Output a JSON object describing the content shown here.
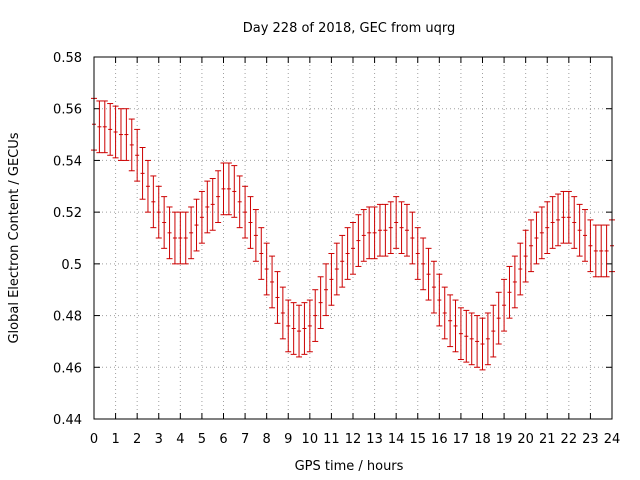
{
  "chart_data": {
    "type": "line",
    "title": "Day 228 of 2018, GEC from uqrg",
    "xlabel": "GPS time / hours",
    "ylabel": "Global Electron Content / GECUs",
    "xlim": [
      0,
      24
    ],
    "ylim": [
      0.44,
      0.58
    ],
    "xticks": [
      "0",
      "1",
      "2",
      "3",
      "4",
      "5",
      "6",
      "7",
      "8",
      "9",
      "10",
      "11",
      "12",
      "13",
      "14",
      "15",
      "16",
      "17",
      "18",
      "19",
      "20",
      "21",
      "22",
      "23",
      "24"
    ],
    "yticks": [
      "0.44",
      "0.46",
      "0.48",
      "0.5",
      "0.52",
      "0.54",
      "0.56",
      "0.58"
    ],
    "grid": true,
    "series": [
      {
        "color": "#cc0000",
        "error": 0.01,
        "x": [
          0,
          0.25,
          0.5,
          0.75,
          1,
          1.25,
          1.5,
          1.75,
          2,
          2.25,
          2.5,
          2.75,
          3,
          3.25,
          3.5,
          3.75,
          4,
          4.25,
          4.5,
          4.75,
          5,
          5.25,
          5.5,
          5.75,
          6,
          6.25,
          6.5,
          6.75,
          7,
          7.25,
          7.5,
          7.75,
          8,
          8.25,
          8.5,
          8.75,
          9,
          9.25,
          9.5,
          9.75,
          10,
          10.25,
          10.5,
          10.75,
          11,
          11.25,
          11.5,
          11.75,
          12,
          12.25,
          12.5,
          12.75,
          13,
          13.25,
          13.5,
          13.75,
          14,
          14.25,
          14.5,
          14.75,
          15,
          15.25,
          15.5,
          15.75,
          16,
          16.25,
          16.5,
          16.75,
          17,
          17.25,
          17.5,
          17.75,
          18,
          18.25,
          18.5,
          18.75,
          19,
          19.25,
          19.5,
          19.75,
          20,
          20.25,
          20.5,
          20.75,
          21,
          21.25,
          21.5,
          21.75,
          22,
          22.25,
          22.5,
          22.75,
          23,
          23.25,
          23.5,
          23.75,
          24
        ],
        "values": [
          0.554,
          0.553,
          0.553,
          0.552,
          0.551,
          0.55,
          0.55,
          0.546,
          0.542,
          0.535,
          0.53,
          0.524,
          0.52,
          0.516,
          0.512,
          0.51,
          0.51,
          0.51,
          0.512,
          0.515,
          0.518,
          0.522,
          0.523,
          0.526,
          0.529,
          0.529,
          0.528,
          0.524,
          0.52,
          0.516,
          0.511,
          0.504,
          0.498,
          0.493,
          0.487,
          0.481,
          0.476,
          0.475,
          0.474,
          0.475,
          0.476,
          0.48,
          0.485,
          0.49,
          0.494,
          0.498,
          0.501,
          0.504,
          0.506,
          0.509,
          0.511,
          0.512,
          0.512,
          0.513,
          0.513,
          0.514,
          0.516,
          0.514,
          0.513,
          0.51,
          0.504,
          0.5,
          0.496,
          0.491,
          0.486,
          0.481,
          0.478,
          0.476,
          0.473,
          0.472,
          0.471,
          0.47,
          0.469,
          0.471,
          0.474,
          0.479,
          0.484,
          0.489,
          0.493,
          0.498,
          0.503,
          0.507,
          0.51,
          0.512,
          0.514,
          0.516,
          0.517,
          0.518,
          0.518,
          0.516,
          0.513,
          0.511,
          0.507,
          0.505,
          0.505,
          0.505,
          0.507
        ]
      }
    ]
  }
}
